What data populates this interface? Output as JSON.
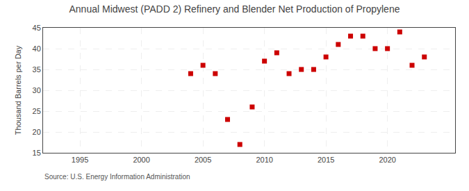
{
  "chart_data": {
    "type": "scatter",
    "title": "Annual Midwest (PADD 2) Refinery and Blender Net Production of Propylene",
    "ylabel": "Thousand Barrels per Day",
    "annotations": [
      "Source: U.S. Energy Information Administration"
    ],
    "x": [
      2004,
      2005,
      2006,
      2007,
      2008,
      2009,
      2010,
      2011,
      2012,
      2013,
      2014,
      2015,
      2016,
      2017,
      2018,
      2019,
      2020,
      2021,
      2022,
      2023
    ],
    "values": [
      34,
      36,
      34,
      23,
      17,
      26,
      37,
      39,
      34,
      35,
      35,
      38,
      41,
      43,
      43,
      40,
      40,
      44,
      36,
      38
    ],
    "color": "#cc0000",
    "marker": "square",
    "xlim": [
      1992,
      2025.5
    ],
    "ylim": [
      15,
      45
    ],
    "xticks": [
      1995,
      2000,
      2005,
      2010,
      2015,
      2020
    ],
    "yticks": [
      15,
      20,
      25,
      30,
      35,
      40,
      45
    ],
    "grid": true
  }
}
